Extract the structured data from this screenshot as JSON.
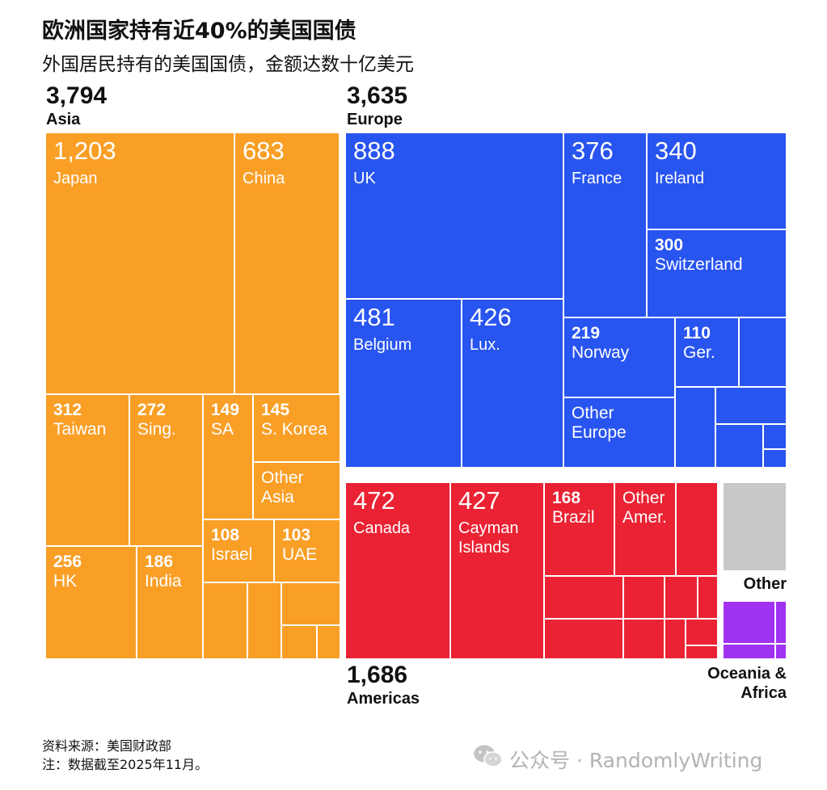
{
  "chart_data": {
    "type": "treemap",
    "title": "欧洲国家持有近40%的美国国债",
    "subtitle": "外国居民持有的美国国债，金额达数十亿美元",
    "groups": [
      {
        "name": "Asia",
        "total": "3,794",
        "color": "#F99F26",
        "items": [
          {
            "label": "Japan",
            "value": "1,203"
          },
          {
            "label": "China",
            "value": "683"
          },
          {
            "label": "Taiwan",
            "value": "312"
          },
          {
            "label": "Sing.",
            "value": "272"
          },
          {
            "label": "SA",
            "value": "149"
          },
          {
            "label": "S. Korea",
            "value": "145"
          },
          {
            "label": "Other Asia",
            "value": ""
          },
          {
            "label": "HK",
            "value": "256"
          },
          {
            "label": "India",
            "value": "186"
          },
          {
            "label": "Israel",
            "value": "108"
          },
          {
            "label": "UAE",
            "value": "103"
          }
        ]
      },
      {
        "name": "Europe",
        "total": "3,635",
        "color": "#2854F0",
        "items": [
          {
            "label": "UK",
            "value": "888"
          },
          {
            "label": "France",
            "value": "376"
          },
          {
            "label": "Ireland",
            "value": "340"
          },
          {
            "label": "Switzerland",
            "value": "300"
          },
          {
            "label": "Belgium",
            "value": "481"
          },
          {
            "label": "Lux.",
            "value": "426"
          },
          {
            "label": "Norway",
            "value": "219"
          },
          {
            "label": "Ger.",
            "value": "110"
          },
          {
            "label": "Other Europe",
            "value": ""
          }
        ]
      },
      {
        "name": "Americas",
        "total": "1,686",
        "color": "#EA2233",
        "items": [
          {
            "label": "Canada",
            "value": "472"
          },
          {
            "label": "Cayman Islands",
            "value": "427"
          },
          {
            "label": "Brazil",
            "value": "168"
          },
          {
            "label": "Other Amer.",
            "value": ""
          }
        ]
      },
      {
        "name": "Other",
        "total": "",
        "color": "#C8C8C8",
        "items": []
      },
      {
        "name": "Oceania & Africa",
        "total": "",
        "color": "#A032F2",
        "items": []
      }
    ]
  },
  "footer": {
    "source": "资料来源：美国财政部",
    "note": "注：数据截至2025年11月。"
  },
  "watermark": "公众号 · RandomlyWriting"
}
